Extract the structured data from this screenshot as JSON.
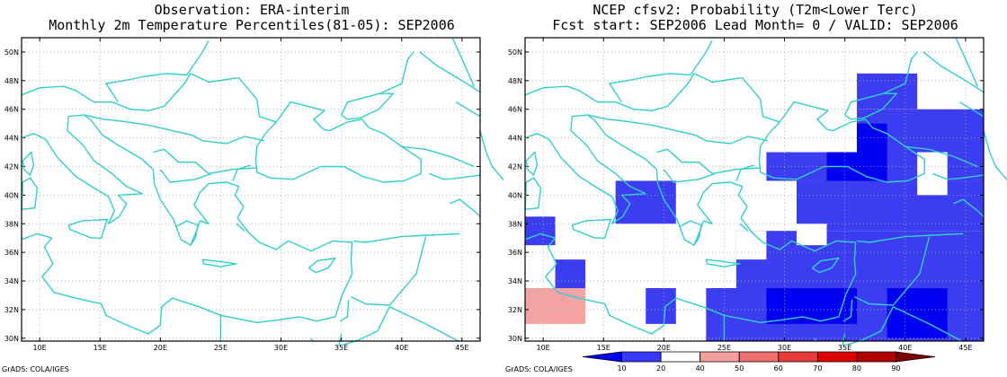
{
  "left": {
    "title_line1": "Observation: ERA-interim",
    "title_line2": "Monthly 2m Temperature Percentiles(81-05): SEP2006",
    "credit": "GrADS: COLA/IGES"
  },
  "right": {
    "title_line1": "NCEP cfsv2: Probability (T2m<Lower Terc)",
    "title_line2": "Fcst start: SEP2006  Lead Month= 0 / VALID: SEP2006",
    "credit": "GrADS: COLA/IGES"
  },
  "axes": {
    "lon_labels": [
      "10E",
      "15E",
      "20E",
      "25E",
      "30E",
      "35E",
      "40E",
      "45E"
    ],
    "lat_labels": [
      "30N",
      "32N",
      "34N",
      "36N",
      "38N",
      "40N",
      "42N",
      "44N",
      "46N",
      "48N",
      "50N"
    ]
  },
  "colorbar": {
    "labels": [
      "10",
      "20",
      "40",
      "50",
      "60",
      "70",
      "80",
      "90"
    ],
    "colors": [
      "#0000ff",
      "#3838ff",
      "#ffffff",
      "#f5a0a0",
      "#f07070",
      "#e83c3c",
      "#dd0000",
      "#b00000",
      "#800000"
    ]
  },
  "colors": {
    "coast": "#30d0c8",
    "grid": "#aaaaaa",
    "blue_dark": "#0000f0",
    "blue_mid": "#3c3cf0",
    "pink": "#f5a3a3"
  },
  "map_data": {
    "extent": {
      "lon_min": 8.5,
      "lon_max": 46.5,
      "lat_min": 29.8,
      "lat_max": 51.0
    },
    "cells": [
      {
        "lon": 8.5,
        "lat": 36.5,
        "w": 2.5,
        "h": 2.0,
        "cls": "blue_mid"
      },
      {
        "lon": 11.0,
        "lat": 33.5,
        "w": 2.5,
        "h": 2.0,
        "cls": "blue_mid"
      },
      {
        "lon": 8.5,
        "lat": 31.0,
        "w": 5.0,
        "h": 2.5,
        "cls": "pink"
      },
      {
        "lon": 16.0,
        "lat": 38.0,
        "w": 5.0,
        "h": 3.0,
        "cls": "blue_mid"
      },
      {
        "lon": 18.5,
        "lat": 31.0,
        "w": 2.5,
        "h": 2.5,
        "cls": "blue_mid"
      },
      {
        "lon": 23.5,
        "lat": 29.8,
        "w": 23.0,
        "h": 3.7,
        "cls": "blue_mid"
      },
      {
        "lon": 26.0,
        "lat": 33.5,
        "w": 20.5,
        "h": 4.0,
        "cls": "blue_mid"
      },
      {
        "lon": 31.0,
        "lat": 37.5,
        "w": 15.5,
        "h": 3.5,
        "cls": "blue_mid"
      },
      {
        "lon": 28.5,
        "lat": 41.0,
        "w": 18.0,
        "h": 2.0,
        "cls": "blue_mid"
      },
      {
        "lon": 36.0,
        "lat": 43.0,
        "w": 10.5,
        "h": 3.0,
        "cls": "blue_mid"
      },
      {
        "lon": 36.0,
        "lat": 46.0,
        "w": 5.0,
        "h": 2.5,
        "cls": "blue_mid"
      },
      {
        "lon": 28.5,
        "lat": 31.0,
        "w": 7.5,
        "h": 2.5,
        "cls": "blue_dark"
      },
      {
        "lon": 38.5,
        "lat": 30.0,
        "w": 5.0,
        "h": 3.5,
        "cls": "blue_dark"
      },
      {
        "lon": 33.5,
        "lat": 41.0,
        "w": 5.0,
        "h": 2.0,
        "cls": "blue_dark"
      },
      {
        "lon": 36.0,
        "lat": 43.0,
        "w": 2.5,
        "h": 2.0,
        "cls": "blue_dark"
      },
      {
        "lon": 41.0,
        "lat": 40.0,
        "w": 2.5,
        "h": 3.0,
        "cls": "white"
      },
      {
        "lon": 31.0,
        "lat": 36.5,
        "w": 2.5,
        "h": 1.5,
        "cls": "white"
      },
      {
        "lon": 26.0,
        "lat": 35.5,
        "w": 2.5,
        "h": 2.0,
        "cls": "white"
      },
      {
        "lon": 28.5,
        "lat": 38.0,
        "w": 2.5,
        "h": 1.5,
        "cls": "white"
      }
    ]
  }
}
